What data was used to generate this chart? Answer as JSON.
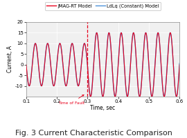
{
  "title": "Fig. 3 Current Characteristic Comparison",
  "xlabel": "Time, sec",
  "ylabel": "Current, A",
  "xlim": [
    0.1,
    0.6
  ],
  "ylim": [
    -15,
    20
  ],
  "yticks": [
    -10,
    -5,
    0,
    5,
    10,
    15,
    20
  ],
  "xticks": [
    0.1,
    0.2,
    0.3,
    0.4,
    0.5,
    0.6
  ],
  "fault_time": 0.3,
  "fault_label": "Time of Fault",
  "pre_fault_amplitude": 10,
  "post_fault_amplitude": 15,
  "freq": 25,
  "jmag_color": "#e8001c",
  "ldlq_color": "#4a90d9",
  "legend_jmag": "JMAG-RT Model",
  "legend_ldlq": "LdLq (Constant) Model",
  "background_color": "#ffffff",
  "plot_bg_color": "#f0f0f0",
  "grid_color": "#ffffff",
  "fig_title_fontsize": 8.0,
  "axis_fontsize": 5.5,
  "tick_fontsize": 5.0,
  "legend_fontsize": 4.8
}
